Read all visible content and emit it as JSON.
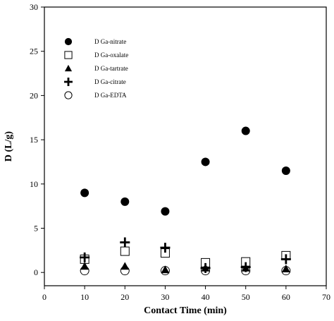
{
  "chart_data": {
    "type": "scatter",
    "xlabel": "Contact Time (min)",
    "ylabel": "D (L/g)",
    "xlim": [
      0,
      70
    ],
    "ylim": [
      -1.5,
      30
    ],
    "xticks": [
      0,
      10,
      20,
      30,
      40,
      50,
      60,
      70
    ],
    "yticks": [
      0,
      5,
      10,
      15,
      20,
      25,
      30
    ],
    "grid": false,
    "legend_position": "upper-left",
    "series": [
      {
        "name": "D Ga-nitrate",
        "marker": "filled-circle",
        "x": [
          10,
          20,
          30,
          40,
          50,
          60
        ],
        "y": [
          9.0,
          8.0,
          6.9,
          12.5,
          16.0,
          11.5
        ]
      },
      {
        "name": "D Ga-oxalate",
        "marker": "open-square",
        "x": [
          10,
          20,
          30,
          40,
          50,
          60
        ],
        "y": [
          1.5,
          2.4,
          2.2,
          1.1,
          1.2,
          1.9
        ]
      },
      {
        "name": "D Ga-tartrate",
        "marker": "filled-triangle",
        "x": [
          10,
          20,
          30,
          40,
          50,
          60
        ],
        "y": [
          0.7,
          0.7,
          0.3,
          0.5,
          0.5,
          0.4
        ]
      },
      {
        "name": "D Ga-citrate",
        "marker": "plus",
        "x": [
          10,
          20,
          30,
          40,
          50,
          60
        ],
        "y": [
          1.7,
          3.4,
          2.8,
          0.5,
          0.6,
          1.5
        ]
      },
      {
        "name": "D Ga-EDTA",
        "marker": "open-circle",
        "x": [
          10,
          20,
          30,
          40,
          50,
          60
        ],
        "y": [
          0.2,
          0.2,
          0.2,
          0.2,
          0.2,
          0.2
        ]
      }
    ]
  }
}
